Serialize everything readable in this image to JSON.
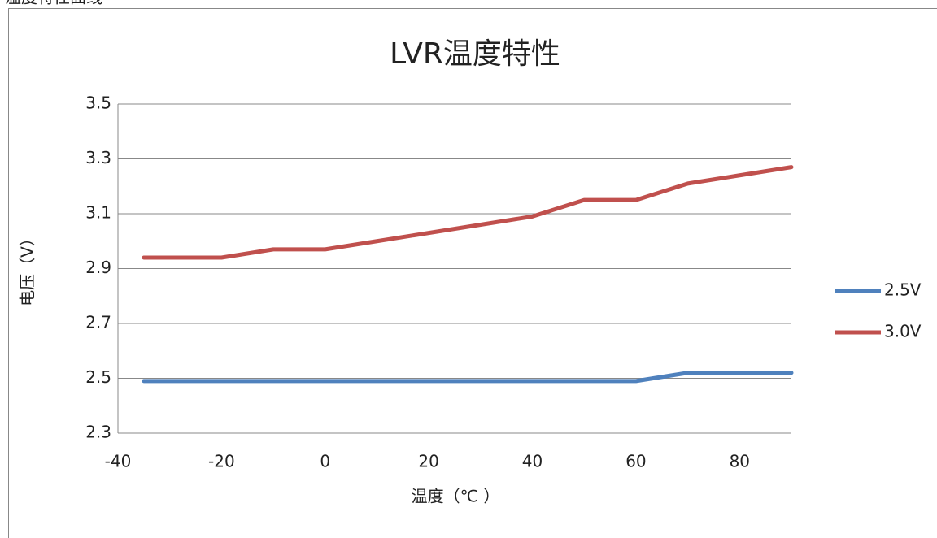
{
  "caption": "温度特性曲线",
  "chart_data": {
    "type": "line",
    "title": "LVR温度特性",
    "x_label": "温度（℃ ）",
    "y_label": "电压（V）",
    "x": [
      -35,
      -20,
      -10,
      0,
      10,
      20,
      30,
      40,
      50,
      60,
      70,
      80,
      90
    ],
    "series": [
      {
        "name": "2.5V",
        "color": "#4f81bd",
        "values": [
          2.49,
          2.49,
          2.49,
          2.49,
          2.49,
          2.49,
          2.49,
          2.49,
          2.49,
          2.49,
          2.52,
          2.52,
          2.52
        ]
      },
      {
        "name": "3.0V",
        "color": "#c0504d",
        "values": [
          2.94,
          2.94,
          2.97,
          2.97,
          3.0,
          3.03,
          3.06,
          3.09,
          3.15,
          3.15,
          3.21,
          3.24,
          3.27
        ]
      }
    ],
    "xlim": [
      -40,
      90
    ],
    "xticks": [
      -40,
      -20,
      0,
      20,
      40,
      60,
      80
    ],
    "ylim": [
      2.3,
      3.5
    ],
    "yticks": [
      2.3,
      2.5,
      2.7,
      2.9,
      3.1,
      3.3,
      3.5
    ],
    "grid": true,
    "legend": "right"
  }
}
